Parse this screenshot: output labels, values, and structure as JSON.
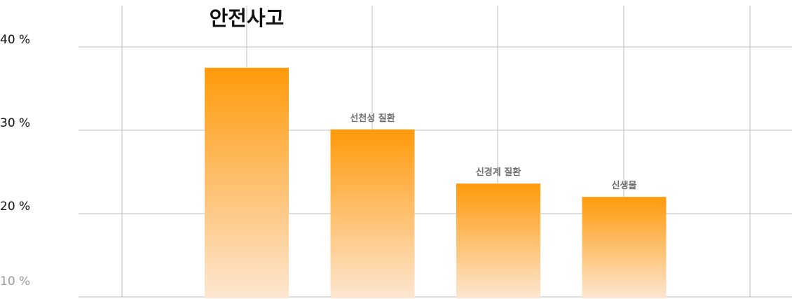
{
  "chart_data": {
    "type": "bar",
    "categories": [
      "안전사고",
      "선천성 질환",
      "신경계 질환",
      "신생물"
    ],
    "values": [
      37.5,
      30.1,
      23.6,
      22.0
    ],
    "yticks": [
      "10 %",
      "20 %",
      "30 %",
      "40 %"
    ],
    "ylim": [
      10,
      45
    ],
    "grid": true,
    "highlight_category": "안전사고",
    "colors": {
      "bar_top": "#ff9a0a",
      "bar_bottom": "#fde6d1",
      "grid": "#bdbdbd"
    }
  }
}
